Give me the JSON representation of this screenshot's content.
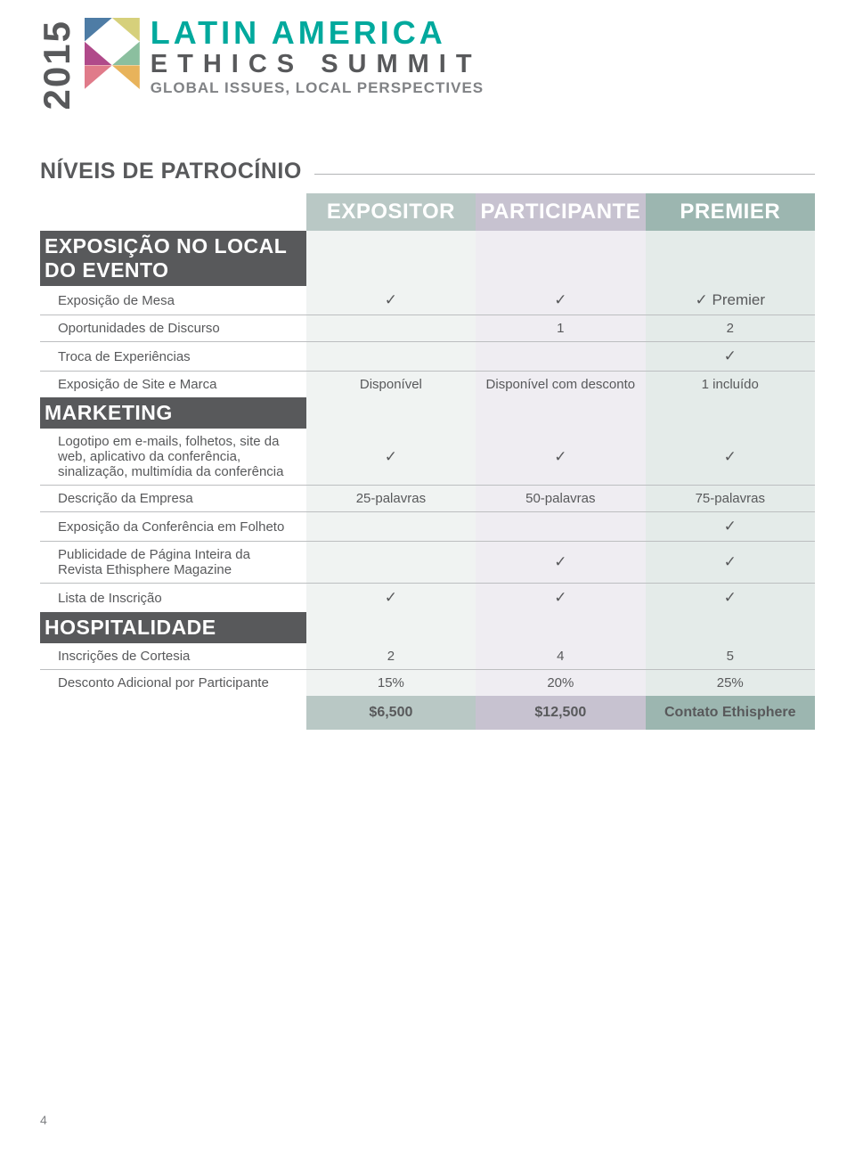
{
  "logo": {
    "year": "2015",
    "line1": "LATIN AMERICA",
    "line2": "ETHICS SUMMIT",
    "line3": "GLOBAL ISSUES, LOCAL PERSPECTIVES",
    "line1_color": "#00a99d",
    "mosaic_colors": [
      "#4e7ca5",
      "#d6d07b",
      "#b04a8a",
      "#8bbf9f",
      "#e07b8a",
      "#e8b35b"
    ]
  },
  "section_title": "NÍVEIS DE PATROCÍNIO",
  "tiers": [
    {
      "label": "EXPOSITOR",
      "bg": "#b9c8c5"
    },
    {
      "label": "PARTICIPANTE",
      "bg": "#c7c2d0"
    },
    {
      "label": "PREMIER",
      "bg": "#9cb6b0"
    }
  ],
  "col_bg": [
    "#f0f3f2",
    "#efedf2",
    "#e4ebe9"
  ],
  "check": "✓",
  "groups": [
    {
      "title": "EXPOSIÇÃO NO LOCAL DO EVENTO",
      "rows": [
        {
          "label": "Exposição de Mesa",
          "v": [
            "✓",
            "✓",
            "✓ Premier"
          ]
        },
        {
          "label": "Oportunidades de Discurso",
          "v": [
            "",
            "1",
            "2"
          ]
        },
        {
          "label": "Troca de Experiências",
          "v": [
            "",
            "",
            "✓"
          ]
        },
        {
          "label": "Exposição de Site e Marca",
          "v": [
            "Disponível",
            "Disponível com desconto",
            "1 incluído"
          ],
          "noborder": true
        }
      ]
    },
    {
      "title": "MARKETING",
      "rows": [
        {
          "label": "Logotipo em e-mails, folhetos, site da web, aplicativo da conferência, sinalização, multimídia da conferência",
          "v": [
            "✓",
            "✓",
            "✓"
          ]
        },
        {
          "label": "Descrição da Empresa",
          "v": [
            "25-palavras",
            "50-palavras",
            "75-palavras"
          ]
        },
        {
          "label": "Exposição da Conferência em Folheto",
          "v": [
            "",
            "",
            "✓"
          ]
        },
        {
          "label": "Publicidade de Página Inteira da Revista Ethisphere Magazine",
          "v": [
            "",
            "✓",
            "✓"
          ]
        },
        {
          "label": "Lista de Inscrição",
          "v": [
            "✓",
            "✓",
            "✓"
          ],
          "noborder": true
        }
      ]
    },
    {
      "title": "HOSPITALIDADE",
      "rows": [
        {
          "label": "Inscrições de Cortesia",
          "v": [
            "2",
            "4",
            "5"
          ]
        },
        {
          "label": "Desconto Adicional por Participante",
          "v": [
            "15%",
            "20%",
            "25%"
          ],
          "noborder": true
        }
      ]
    }
  ],
  "price_row": {
    "label": "",
    "v": [
      "$6,500",
      "$12,500",
      "Contato Ethisphere"
    ]
  },
  "page_number": "4"
}
